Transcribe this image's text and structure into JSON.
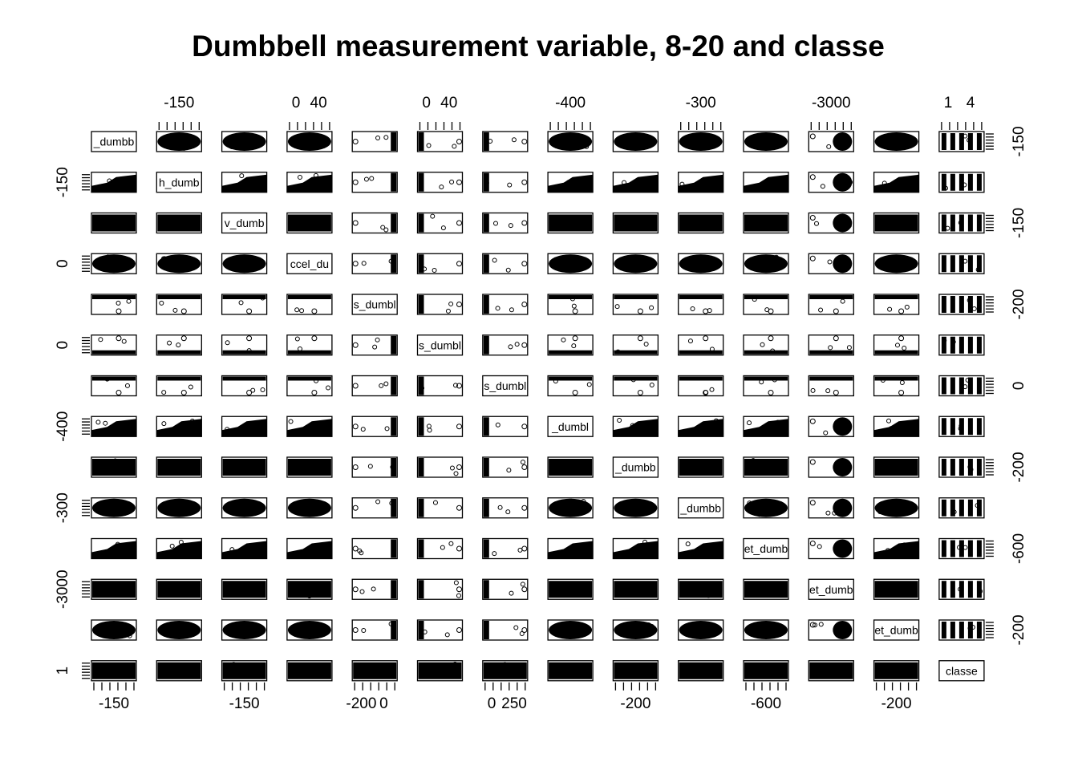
{
  "chart_data": {
    "type": "scatter",
    "subtype": "scatterplot-matrix",
    "title": "Dumbbell measurement variable, 8-20 and classe",
    "variables": [
      "_dumbb",
      "h_dumb",
      "v_dumb",
      "ccel_du",
      "s_dumbl",
      "s_dumbl",
      "s_dumbl",
      "_dumbl",
      "_dumbb",
      "_dumbb",
      "et_dumb",
      "et_dumb",
      "et_dumb",
      "classe"
    ],
    "top_axis_labels": [
      {
        "panel": 1,
        "labels": [
          "-150"
        ]
      },
      {
        "panel": 3,
        "labels": [
          "0",
          "40"
        ]
      },
      {
        "panel": 5,
        "labels": [
          "0",
          "40"
        ]
      },
      {
        "panel": 7,
        "labels": [
          "-400"
        ]
      },
      {
        "panel": 9,
        "labels": [
          "-300"
        ]
      },
      {
        "panel": 11,
        "labels": [
          "-3000"
        ]
      },
      {
        "panel": 13,
        "labels": [
          "1",
          "4"
        ]
      }
    ],
    "bottom_axis_labels": [
      {
        "panel": 0,
        "labels": [
          "-150"
        ]
      },
      {
        "panel": 2,
        "labels": [
          "-150"
        ]
      },
      {
        "panel": 4,
        "labels": [
          "-200",
          "0"
        ]
      },
      {
        "panel": 6,
        "labels": [
          "0",
          "250"
        ]
      },
      {
        "panel": 8,
        "labels": [
          "-200"
        ]
      },
      {
        "panel": 10,
        "labels": [
          "-600"
        ]
      },
      {
        "panel": 12,
        "labels": [
          "-200"
        ]
      }
    ],
    "left_axis_labels": [
      {
        "panel": 1,
        "labels": [
          "-150"
        ]
      },
      {
        "panel": 3,
        "labels": [
          "0"
        ]
      },
      {
        "panel": 5,
        "labels": [
          "0"
        ]
      },
      {
        "panel": 7,
        "labels": [
          "-400"
        ]
      },
      {
        "panel": 9,
        "labels": [
          "-300"
        ]
      },
      {
        "panel": 11,
        "labels": [
          "-3000"
        ]
      },
      {
        "panel": 13,
        "labels": [
          "1"
        ]
      }
    ],
    "right_axis_labels": [
      {
        "panel": 0,
        "labels": [
          "-150"
        ]
      },
      {
        "panel": 2,
        "labels": [
          "-150"
        ]
      },
      {
        "panel": 4,
        "labels": [
          "-200"
        ]
      },
      {
        "panel": 6,
        "labels": [
          "0"
        ]
      },
      {
        "panel": 8,
        "labels": [
          "-200"
        ]
      },
      {
        "panel": 10,
        "labels": [
          "-600"
        ]
      },
      {
        "panel": 12,
        "labels": [
          "-200"
        ]
      }
    ],
    "classe_levels": 5,
    "grid": false,
    "legend": "none"
  }
}
